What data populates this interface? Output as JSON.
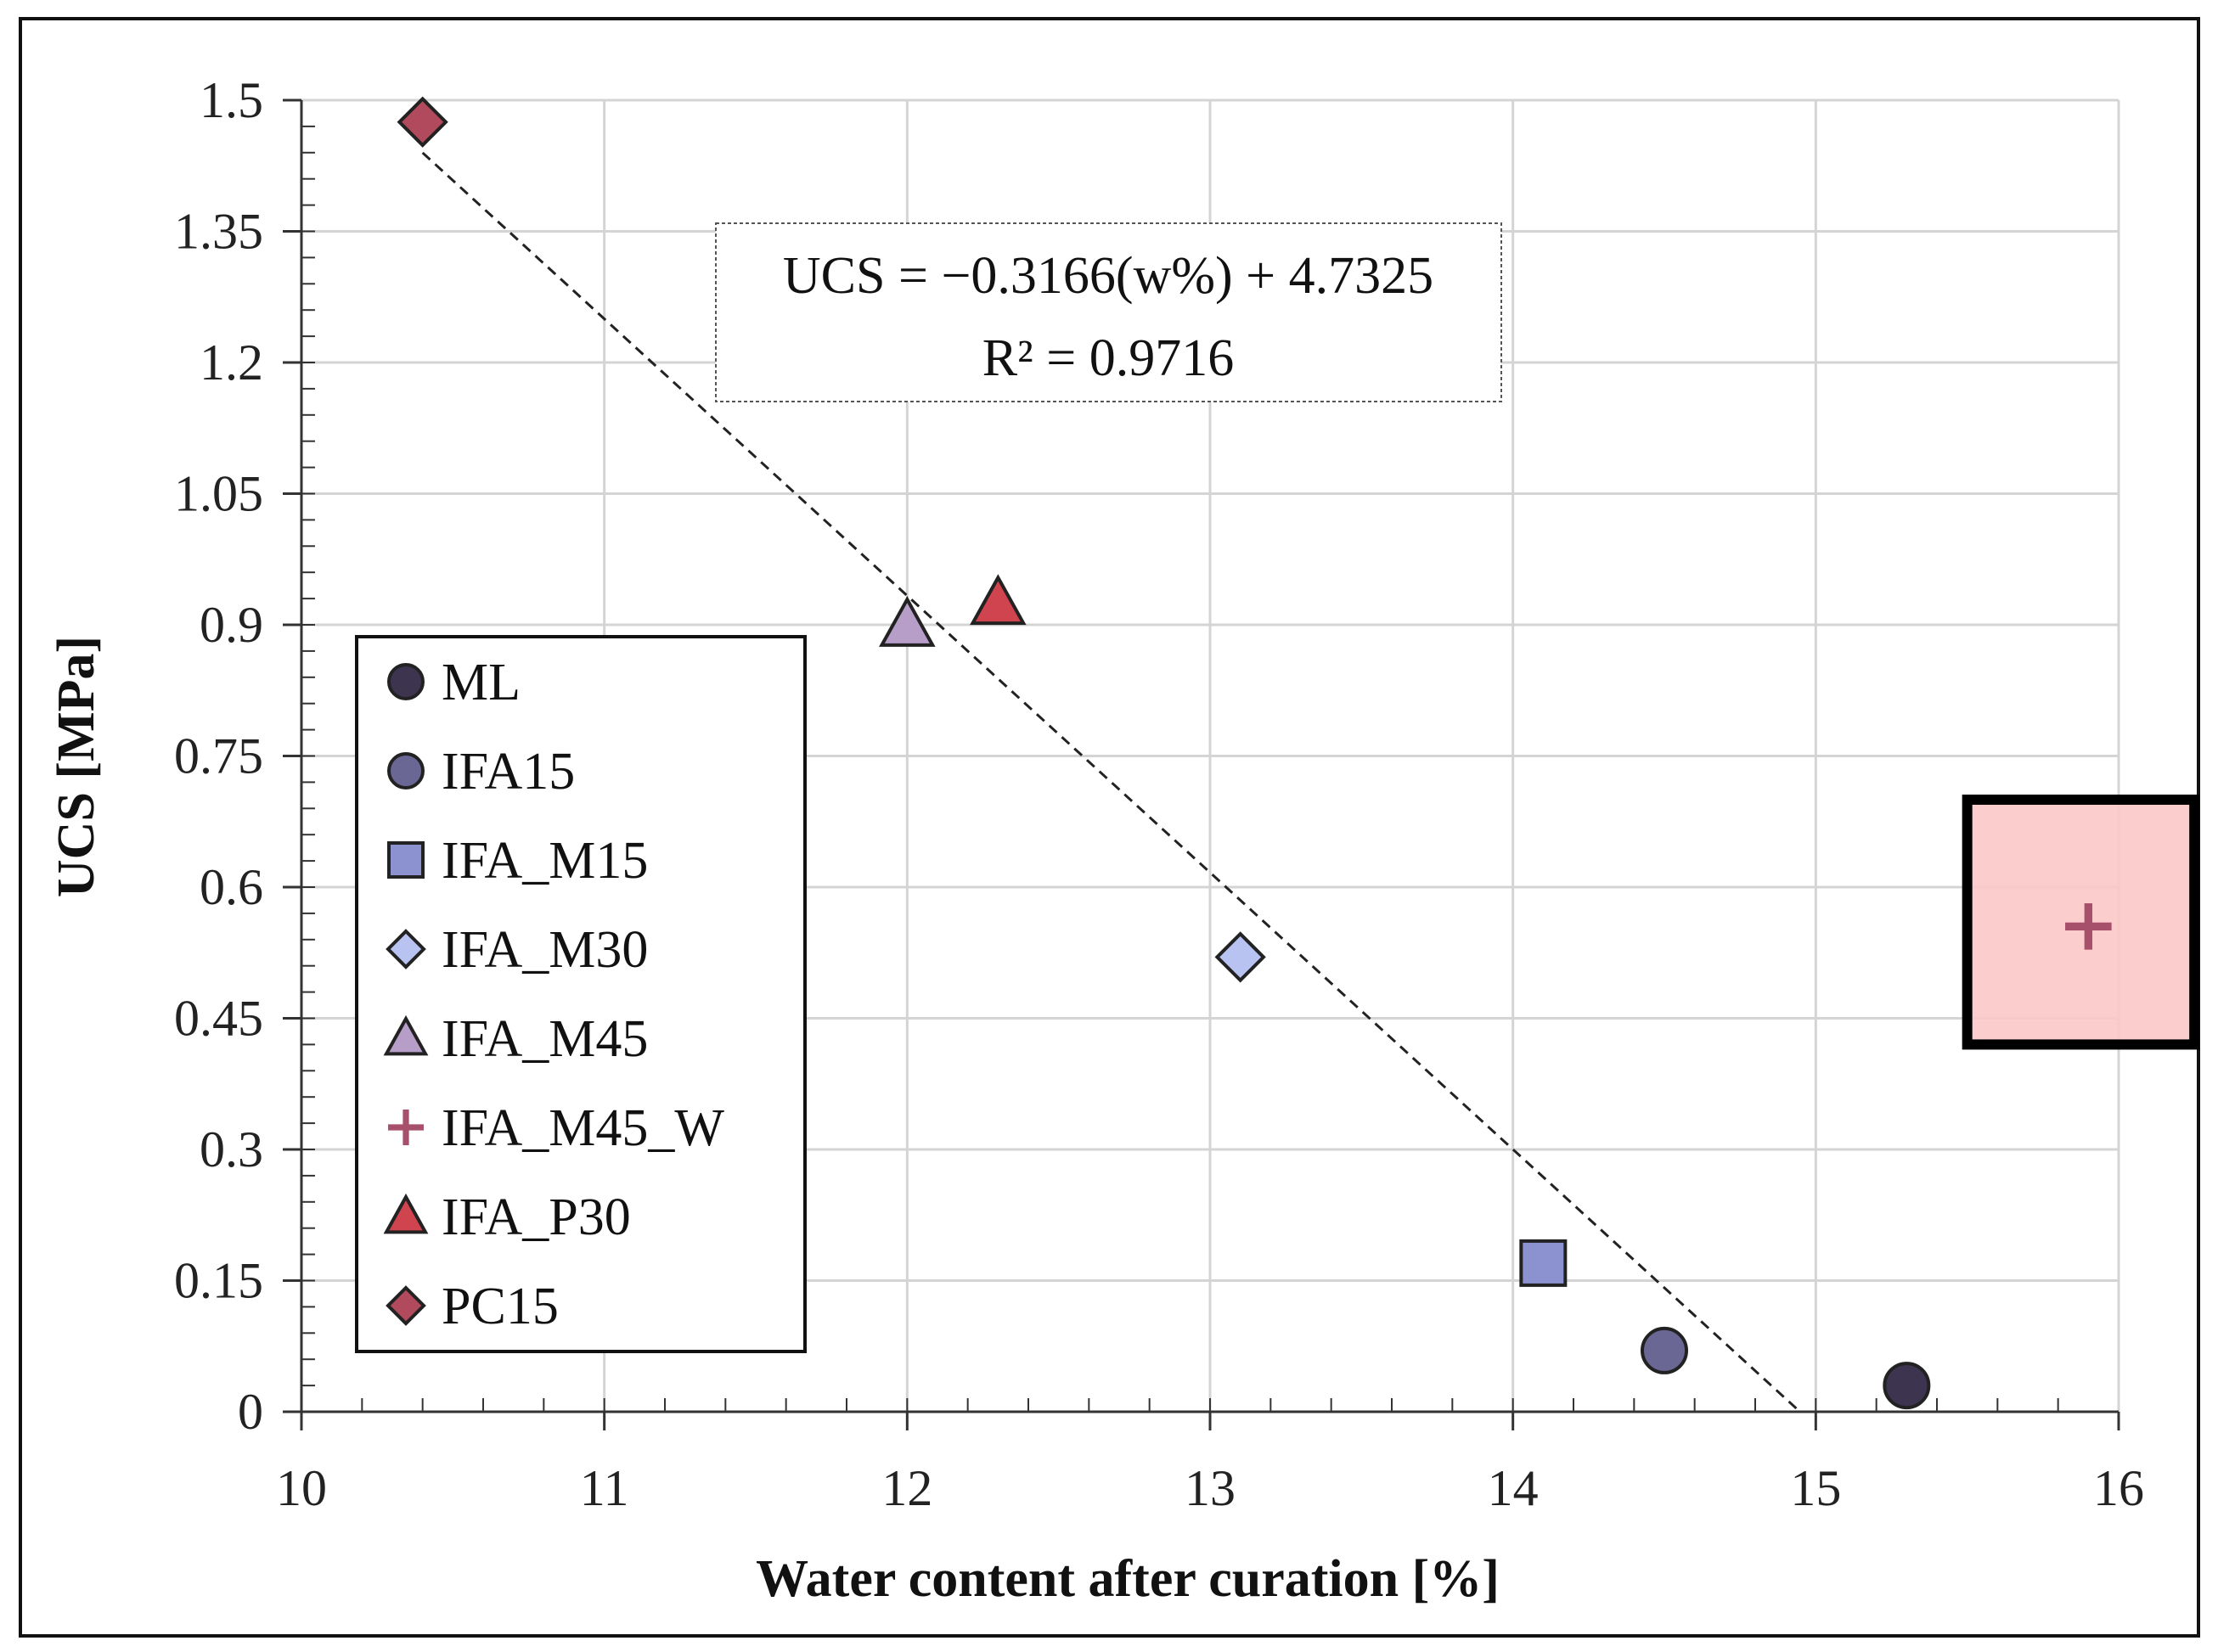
{
  "chart_data": {
    "type": "scatter",
    "xlabel": "Water content after curation [%]",
    "ylabel": "UCS [MPa]",
    "xlim": [
      10,
      16
    ],
    "ylim": [
      0,
      1.5
    ],
    "x_ticks": [
      "10",
      "11",
      "12",
      "13",
      "14",
      "15",
      "16"
    ],
    "y_ticks": [
      "0",
      "0.15",
      "0.3",
      "0.45",
      "0.6",
      "0.75",
      "0.9",
      "1.05",
      "1.2",
      "1.35",
      "1.5"
    ],
    "grid": true,
    "legend_position": "left",
    "series": [
      {
        "name": "ML",
        "marker": "circle",
        "color": "#3d3550",
        "points": [
          {
            "x": 15.3,
            "y": 0.03
          }
        ]
      },
      {
        "name": "IFA15",
        "marker": "circle",
        "color": "#6a6794",
        "points": [
          {
            "x": 14.5,
            "y": 0.07
          }
        ]
      },
      {
        "name": "IFA_M15",
        "marker": "square",
        "color": "#8c91cf",
        "points": [
          {
            "x": 14.1,
            "y": 0.17
          }
        ]
      },
      {
        "name": "IFA_M30",
        "marker": "diamond",
        "color": "#b8c3f2",
        "points": [
          {
            "x": 13.1,
            "y": 0.52
          }
        ]
      },
      {
        "name": "IFA_M45",
        "marker": "triangle",
        "color": "#b79ec9",
        "points": [
          {
            "x": 12.0,
            "y": 0.9
          }
        ]
      },
      {
        "name": "IFA_M45_W",
        "marker": "plus",
        "color": "#a7506b",
        "points": [
          {
            "x": 15.9,
            "y": 0.555
          }
        ]
      },
      {
        "name": "IFA_P30",
        "marker": "triangle",
        "color": "#d0444f",
        "points": [
          {
            "x": 12.3,
            "y": 0.925
          }
        ]
      },
      {
        "name": "PC15",
        "marker": "diamond",
        "color": "#b04a5c",
        "points": [
          {
            "x": 10.4,
            "y": 1.475
          }
        ]
      }
    ],
    "trendline": {
      "slope": -0.3166,
      "intercept": 4.7325,
      "x_range": [
        10.4,
        14.95
      ],
      "style": "dashed",
      "equation_line1": "UCS = −0.3166(w%) + 4.7325",
      "equation_line2": "R² = 0.9716"
    },
    "highlight": {
      "x_range": [
        15.5,
        16.25
      ],
      "y_range": [
        0.42,
        0.7
      ],
      "fill": "#fbc8c8",
      "border": "#000000"
    }
  }
}
